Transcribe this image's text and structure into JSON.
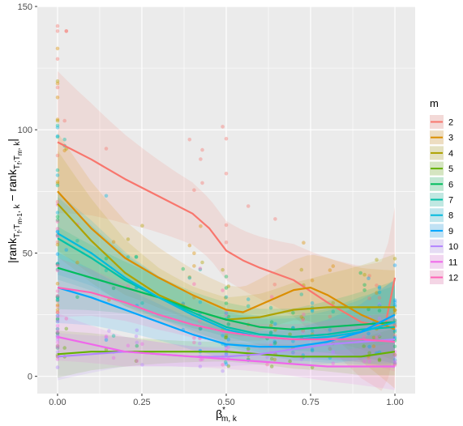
{
  "chart_data": {
    "type": "scatter",
    "xlabel_base": "β",
    "xlabel_sup": "*",
    "xlabel_sub": "m, k",
    "ylabel_parts": [
      {
        "t": "|rank",
        "s": "n"
      },
      {
        "t": "T",
        "s": "sub"
      },
      {
        "t": "f",
        "s": "sub2"
      },
      {
        "t": ":T",
        "s": "sub"
      },
      {
        "t": "m-1",
        "s": "sub2"
      },
      {
        "t": ", k",
        "s": "sub"
      },
      {
        "t": " − rank",
        "s": "n"
      },
      {
        "t": "T",
        "s": "sub"
      },
      {
        "t": "f",
        "s": "sub2"
      },
      {
        "t": ":T",
        "s": "sub"
      },
      {
        "t": "m",
        "s": "sub2"
      },
      {
        "t": ", k",
        "s": "sub"
      },
      {
        "t": "|",
        "s": "n"
      }
    ],
    "xlim": [
      -0.06,
      1.06
    ],
    "ylim": [
      -7,
      150
    ],
    "xticks": [
      0.0,
      0.25,
      0.5,
      0.75,
      1.0
    ],
    "xtick_labels": [
      "0.00",
      "0.25",
      "0.50",
      "0.75",
      "1.00"
    ],
    "yticks": [
      0,
      50,
      100,
      150
    ],
    "ytick_labels": [
      "0",
      "50",
      "100",
      "150"
    ],
    "grid": true,
    "legend": {
      "title": "m",
      "position": "right"
    },
    "series": [
      {
        "name": "2",
        "color": "#F8766D",
        "smooth": [
          [
            0,
            95
          ],
          [
            0.1,
            88
          ],
          [
            0.2,
            80
          ],
          [
            0.3,
            73
          ],
          [
            0.4,
            66
          ],
          [
            0.45,
            60
          ],
          [
            0.5,
            51
          ],
          [
            0.55,
            47
          ],
          [
            0.6,
            44
          ],
          [
            0.7,
            39
          ],
          [
            0.8,
            30
          ],
          [
            0.9,
            22
          ],
          [
            0.97,
            20
          ],
          [
            1.0,
            40
          ]
        ],
        "band": 12
      },
      {
        "name": "3",
        "color": "#DB8E00",
        "smooth": [
          [
            0,
            75
          ],
          [
            0.1,
            60
          ],
          [
            0.2,
            48
          ],
          [
            0.3,
            40
          ],
          [
            0.4,
            33
          ],
          [
            0.5,
            27
          ],
          [
            0.55,
            26
          ],
          [
            0.6,
            29
          ],
          [
            0.7,
            35
          ],
          [
            0.75,
            36
          ],
          [
            0.8,
            33
          ],
          [
            0.9,
            25
          ],
          [
            1.0,
            19
          ]
        ],
        "band": 10
      },
      {
        "name": "4",
        "color": "#AEA200",
        "smooth": [
          [
            0,
            70
          ],
          [
            0.1,
            55
          ],
          [
            0.2,
            42
          ],
          [
            0.3,
            33
          ],
          [
            0.4,
            27
          ],
          [
            0.5,
            23
          ],
          [
            0.6,
            24
          ],
          [
            0.7,
            27
          ],
          [
            0.8,
            28
          ],
          [
            0.9,
            28
          ],
          [
            1.0,
            28
          ]
        ],
        "band": 9
      },
      {
        "name": "5",
        "color": "#64B200",
        "smooth": [
          [
            0,
            9
          ],
          [
            0.1,
            10
          ],
          [
            0.2,
            10
          ],
          [
            0.3,
            10
          ],
          [
            0.4,
            10
          ],
          [
            0.5,
            10
          ],
          [
            0.6,
            9
          ],
          [
            0.7,
            8
          ],
          [
            0.8,
            8
          ],
          [
            0.9,
            8
          ],
          [
            1.0,
            10
          ]
        ],
        "band": 4
      },
      {
        "name": "6",
        "color": "#00BD5C",
        "smooth": [
          [
            0,
            44
          ],
          [
            0.1,
            40
          ],
          [
            0.2,
            36
          ],
          [
            0.3,
            32
          ],
          [
            0.4,
            27
          ],
          [
            0.5,
            23
          ],
          [
            0.6,
            20
          ],
          [
            0.7,
            19
          ],
          [
            0.8,
            20
          ],
          [
            0.9,
            21
          ],
          [
            1.0,
            22
          ]
        ],
        "band": 7
      },
      {
        "name": "7",
        "color": "#00C1A7",
        "smooth": [
          [
            0,
            56
          ],
          [
            0.1,
            48
          ],
          [
            0.2,
            39
          ],
          [
            0.3,
            32
          ],
          [
            0.4,
            26
          ],
          [
            0.5,
            20
          ],
          [
            0.6,
            17
          ],
          [
            0.7,
            16
          ],
          [
            0.8,
            17
          ],
          [
            0.9,
            19
          ],
          [
            1.0,
            20
          ]
        ],
        "band": 7
      },
      {
        "name": "8",
        "color": "#00BADE",
        "smooth": [
          [
            0,
            58
          ],
          [
            0.1,
            50
          ],
          [
            0.2,
            40
          ],
          [
            0.3,
            32
          ],
          [
            0.4,
            25
          ],
          [
            0.5,
            19
          ],
          [
            0.6,
            16
          ],
          [
            0.7,
            15
          ],
          [
            0.8,
            16
          ],
          [
            0.9,
            18
          ],
          [
            1.0,
            22
          ]
        ],
        "band": 7
      },
      {
        "name": "9",
        "color": "#00A6FF",
        "smooth": [
          [
            0,
            36
          ],
          [
            0.1,
            32
          ],
          [
            0.2,
            27
          ],
          [
            0.3,
            22
          ],
          [
            0.4,
            17
          ],
          [
            0.5,
            13
          ],
          [
            0.6,
            12
          ],
          [
            0.7,
            12
          ],
          [
            0.8,
            14
          ],
          [
            0.9,
            18
          ],
          [
            1.0,
            25
          ]
        ],
        "band": 6
      },
      {
        "name": "10",
        "color": "#B385FF",
        "smooth": [
          [
            0,
            8
          ],
          [
            0.1,
            9
          ],
          [
            0.2,
            10
          ],
          [
            0.3,
            9
          ],
          [
            0.4,
            8
          ],
          [
            0.5,
            8
          ],
          [
            0.6,
            9
          ],
          [
            0.7,
            11
          ],
          [
            0.8,
            13
          ],
          [
            0.9,
            14
          ],
          [
            1.0,
            15
          ]
        ],
        "band": 4
      },
      {
        "name": "11",
        "color": "#EF67EB",
        "smooth": [
          [
            0,
            16
          ],
          [
            0.1,
            13
          ],
          [
            0.2,
            10
          ],
          [
            0.3,
            9
          ],
          [
            0.4,
            8
          ],
          [
            0.5,
            7
          ],
          [
            0.6,
            6
          ],
          [
            0.7,
            5
          ],
          [
            0.8,
            4
          ],
          [
            0.9,
            4
          ],
          [
            1.0,
            4
          ]
        ],
        "band": 4
      },
      {
        "name": "12",
        "color": "#FF63B6",
        "smooth": [
          [
            0,
            36
          ],
          [
            0.1,
            34
          ],
          [
            0.2,
            30
          ],
          [
            0.3,
            25
          ],
          [
            0.4,
            21
          ],
          [
            0.5,
            18
          ],
          [
            0.6,
            16
          ],
          [
            0.7,
            15
          ],
          [
            0.8,
            15
          ],
          [
            0.9,
            15
          ],
          [
            1.0,
            14
          ]
        ],
        "band": 5
      }
    ]
  }
}
